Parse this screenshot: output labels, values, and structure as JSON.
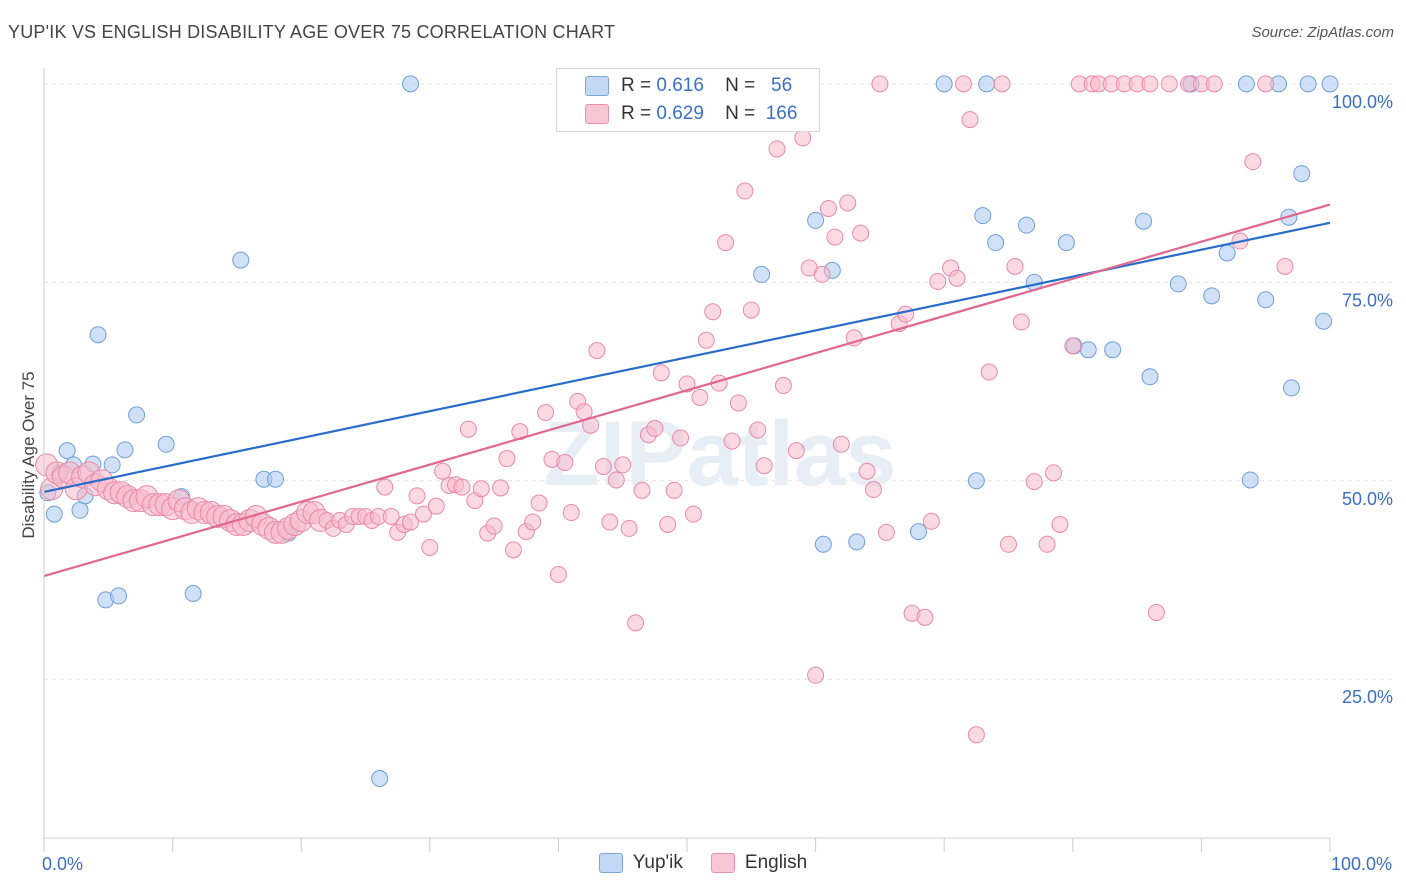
{
  "title": "YUP'IK VS ENGLISH DISABILITY AGE OVER 75 CORRELATION CHART",
  "source": "Source: ZipAtlas.com",
  "chart_data": {
    "type": "scatter",
    "ylabel": "Disability Age Over 75",
    "xlim": [
      0,
      100
    ],
    "ylim": [
      5,
      102
    ],
    "x_tick_labels": [
      "0.0%",
      "100.0%"
    ],
    "y_ticks": [
      25,
      50,
      75,
      100
    ],
    "y_tick_labels": [
      "25.0%",
      "50.0%",
      "75.0%",
      "100.0%"
    ],
    "grid": "horizontal dashed",
    "watermark": "ZIPatlas",
    "legend": [
      {
        "r_label": "R =",
        "r": "0.616",
        "n_label": "N =",
        "n": "56"
      },
      {
        "r_label": "R =",
        "r": "0.629",
        "n_label": "N =",
        "n": "166"
      }
    ],
    "series": [
      {
        "name": "Yup'ik",
        "color": "#a9c8f0",
        "stroke": "#6f9fd8",
        "trend_color": "#2a6cc9",
        "trend": [
          [
            0,
            48.6
          ],
          [
            100,
            82.5
          ]
        ],
        "points": [
          [
            0.3,
            48.5
          ],
          [
            0.8,
            45.8
          ],
          [
            1.2,
            51
          ],
          [
            1.8,
            53.8
          ],
          [
            2.3,
            52
          ],
          [
            2.8,
            46.3
          ],
          [
            3.2,
            48.1
          ],
          [
            3.8,
            52.1
          ],
          [
            4.2,
            68.4
          ],
          [
            4.8,
            35
          ],
          [
            5.3,
            52
          ],
          [
            5.8,
            35.5
          ],
          [
            6.3,
            53.9
          ],
          [
            7.2,
            58.3
          ],
          [
            9.5,
            54.6
          ],
          [
            10.7,
            48
          ],
          [
            11.6,
            35.8
          ],
          [
            15.3,
            77.8
          ],
          [
            17.1,
            50.2
          ],
          [
            18.0,
            50.2
          ],
          [
            19.0,
            43.4
          ],
          [
            26.1,
            12.5
          ],
          [
            28.5,
            100
          ],
          [
            55.8,
            76
          ],
          [
            58.0,
            100
          ],
          [
            60.0,
            82.8
          ],
          [
            60.6,
            42
          ],
          [
            61.3,
            76.5
          ],
          [
            63.2,
            42.3
          ],
          [
            68.0,
            43.6
          ],
          [
            70.0,
            100
          ],
          [
            72.5,
            50
          ],
          [
            73.3,
            100
          ],
          [
            73.0,
            83.4
          ],
          [
            74.0,
            80
          ],
          [
            76.4,
            82.2
          ],
          [
            77.0,
            75
          ],
          [
            79.5,
            80
          ],
          [
            80.1,
            67
          ],
          [
            81.2,
            66.5
          ],
          [
            83.1,
            66.5
          ],
          [
            85.5,
            82.7
          ],
          [
            86.0,
            63.1
          ],
          [
            88.2,
            74.8
          ],
          [
            89.2,
            100
          ],
          [
            90.8,
            73.3
          ],
          [
            92.0,
            78.7
          ],
          [
            93.5,
            100
          ],
          [
            93.8,
            50.1
          ],
          [
            95.0,
            72.8
          ],
          [
            96.0,
            100
          ],
          [
            96.8,
            83.2
          ],
          [
            97.0,
            61.7
          ],
          [
            97.8,
            88.7
          ],
          [
            98.3,
            100
          ],
          [
            99.5,
            70.1
          ],
          [
            100.0,
            100
          ]
        ]
      },
      {
        "name": "English",
        "color": "#f7b9cc",
        "stroke": "#e98aa8",
        "trend_color": "#e0678f",
        "trend": [
          [
            0,
            38
          ],
          [
            100,
            84.8
          ]
        ],
        "points": [
          [
            0.2,
            52
          ],
          [
            0.6,
            49
          ],
          [
            1.0,
            51
          ],
          [
            1.5,
            50.5
          ],
          [
            2.0,
            51
          ],
          [
            2.5,
            49
          ],
          [
            3.0,
            50.5
          ],
          [
            3.5,
            51
          ],
          [
            4.0,
            49.5
          ],
          [
            4.5,
            50
          ],
          [
            5.0,
            49
          ],
          [
            5.5,
            48.5
          ],
          [
            6.0,
            48.5
          ],
          [
            6.5,
            48
          ],
          [
            7.0,
            47.5
          ],
          [
            7.5,
            47.5
          ],
          [
            8.0,
            48
          ],
          [
            8.5,
            47
          ],
          [
            9.0,
            47
          ],
          [
            9.5,
            47
          ],
          [
            10.0,
            46.5
          ],
          [
            10.5,
            47.5
          ],
          [
            11.0,
            46.5
          ],
          [
            11.5,
            46
          ],
          [
            12.0,
            46.5
          ],
          [
            12.5,
            46
          ],
          [
            13.0,
            46
          ],
          [
            13.5,
            45.5
          ],
          [
            14.0,
            45.5
          ],
          [
            14.5,
            45
          ],
          [
            15.0,
            44.5
          ],
          [
            15.5,
            44.5
          ],
          [
            16.0,
            45
          ],
          [
            16.5,
            45.5
          ],
          [
            17.0,
            44.5
          ],
          [
            17.5,
            44
          ],
          [
            18.0,
            43.5
          ],
          [
            18.5,
            43.5
          ],
          [
            19.0,
            44
          ],
          [
            19.5,
            44.5
          ],
          [
            20.0,
            45
          ],
          [
            20.5,
            46
          ],
          [
            21.0,
            46
          ],
          [
            21.5,
            45
          ],
          [
            22.0,
            45
          ],
          [
            22.5,
            44
          ],
          [
            23.0,
            45
          ],
          [
            23.5,
            44.5
          ],
          [
            24.0,
            45.5
          ],
          [
            24.5,
            45.5
          ],
          [
            25.0,
            45.5
          ],
          [
            25.5,
            45
          ],
          [
            26.0,
            45.5
          ],
          [
            26.5,
            49.2
          ],
          [
            27.0,
            45.5
          ],
          [
            27.5,
            43.5
          ],
          [
            28.0,
            44.5
          ],
          [
            28.5,
            44.8
          ],
          [
            29.0,
            48.1
          ],
          [
            29.5,
            45.8
          ],
          [
            30.0,
            41.6
          ],
          [
            30.5,
            46.8
          ],
          [
            31.0,
            51.2
          ],
          [
            31.5,
            49.4
          ],
          [
            32.0,
            49.5
          ],
          [
            32.5,
            49.2
          ],
          [
            33.0,
            56.5
          ],
          [
            33.5,
            47.5
          ],
          [
            34.0,
            49
          ],
          [
            34.5,
            43.4
          ],
          [
            35.0,
            44.3
          ],
          [
            35.5,
            49.1
          ],
          [
            36.0,
            52.8
          ],
          [
            36.5,
            41.3
          ],
          [
            37.0,
            56.2
          ],
          [
            37.5,
            43.6
          ],
          [
            38.0,
            44.8
          ],
          [
            38.5,
            47.2
          ],
          [
            39.0,
            58.6
          ],
          [
            39.5,
            52.7
          ],
          [
            40.0,
            38.2
          ],
          [
            40.5,
            52.3
          ],
          [
            41.0,
            46
          ],
          [
            41.5,
            60
          ],
          [
            42.0,
            58.7
          ],
          [
            42.5,
            57
          ],
          [
            43.0,
            66.4
          ],
          [
            43.5,
            51.8
          ],
          [
            44.0,
            44.8
          ],
          [
            44.5,
            50.1
          ],
          [
            45.0,
            52
          ],
          [
            45.5,
            44
          ],
          [
            46.0,
            32.1
          ],
          [
            46.5,
            48.8
          ],
          [
            47.0,
            55.8
          ],
          [
            47.5,
            56.6
          ],
          [
            48.0,
            63.6
          ],
          [
            48.5,
            44.5
          ],
          [
            49.0,
            48.8
          ],
          [
            49.5,
            55.4
          ],
          [
            50.0,
            62.2
          ],
          [
            50.5,
            45.8
          ],
          [
            51.0,
            60.5
          ],
          [
            51.5,
            67.7
          ],
          [
            52.0,
            71.3
          ],
          [
            52.5,
            62.3
          ],
          [
            53.0,
            80
          ],
          [
            53.5,
            55
          ],
          [
            54.0,
            59.8
          ],
          [
            54.5,
            86.5
          ],
          [
            55.0,
            71.5
          ],
          [
            55.5,
            56.4
          ],
          [
            56.0,
            51.9
          ],
          [
            57.0,
            91.8
          ],
          [
            57.5,
            62
          ],
          [
            58.5,
            53.8
          ],
          [
            59.0,
            93.2
          ],
          [
            59.5,
            76.8
          ],
          [
            60.0,
            25.5
          ],
          [
            60.5,
            76
          ],
          [
            61.0,
            84.3
          ],
          [
            61.5,
            80.7
          ],
          [
            62.0,
            54.6
          ],
          [
            62.5,
            85
          ],
          [
            63.0,
            68
          ],
          [
            63.5,
            81.2
          ],
          [
            64.0,
            51.2
          ],
          [
            64.5,
            48.9
          ],
          [
            65.0,
            100
          ],
          [
            65.5,
            43.5
          ],
          [
            66.5,
            69.8
          ],
          [
            67.0,
            71
          ],
          [
            67.5,
            33.3
          ],
          [
            68.5,
            32.8
          ],
          [
            69.0,
            44.9
          ],
          [
            69.5,
            75.1
          ],
          [
            70.5,
            76.8
          ],
          [
            71.0,
            75.5
          ],
          [
            71.5,
            100
          ],
          [
            72.0,
            95.5
          ],
          [
            72.5,
            18
          ],
          [
            73.5,
            63.7
          ],
          [
            74.5,
            100
          ],
          [
            75.0,
            42
          ],
          [
            75.5,
            77
          ],
          [
            76.0,
            70
          ],
          [
            77.0,
            49.9
          ],
          [
            78.0,
            42
          ],
          [
            78.5,
            51
          ],
          [
            79.0,
            44.5
          ],
          [
            80.0,
            67
          ],
          [
            80.5,
            100
          ],
          [
            81.5,
            100
          ],
          [
            82.0,
            100
          ],
          [
            83.0,
            100
          ],
          [
            84.0,
            100
          ],
          [
            85.0,
            100
          ],
          [
            86.0,
            100
          ],
          [
            86.5,
            33.4
          ],
          [
            87.5,
            100
          ],
          [
            89.0,
            100
          ],
          [
            90.0,
            100
          ],
          [
            91.0,
            100
          ],
          [
            93.0,
            80.2
          ],
          [
            94.0,
            90.2
          ],
          [
            95.0,
            100
          ],
          [
            96.5,
            77
          ]
        ]
      }
    ]
  }
}
